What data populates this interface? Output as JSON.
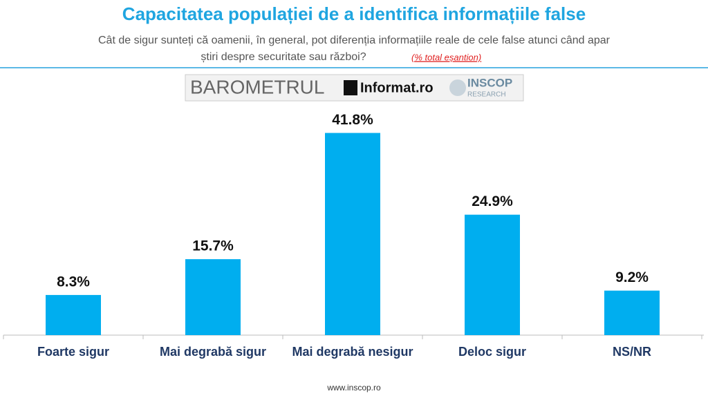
{
  "chart_data": {
    "type": "bar",
    "title": "Capacitatea populației de a identifica informațiile false",
    "subtitle": [
      "Cât de sigur sunteți că oamenii, în general, pot diferenția informațiile reale de cele false atunci când apar",
      "știri despre securitate sau război?"
    ],
    "note": "(% total eșantion)",
    "categories": [
      "Foarte sigur",
      "Mai degrabă sigur",
      "Mai degrabă nesigur",
      "Deloc sigur",
      "NS/NR"
    ],
    "values": [
      8.3,
      15.7,
      41.8,
      24.9,
      9.2
    ],
    "value_labels": [
      "8.3%",
      "15.7%",
      "41.8%",
      "24.9%",
      "9.2%"
    ],
    "color": "#00aeef",
    "grid": false
  },
  "logo": {
    "barometer": "BAROMETRUL",
    "partner": "Informat.ro",
    "brand": "INSCOP",
    "brand_sub": "RESEARCH"
  },
  "footer": "www.inscop.ro"
}
